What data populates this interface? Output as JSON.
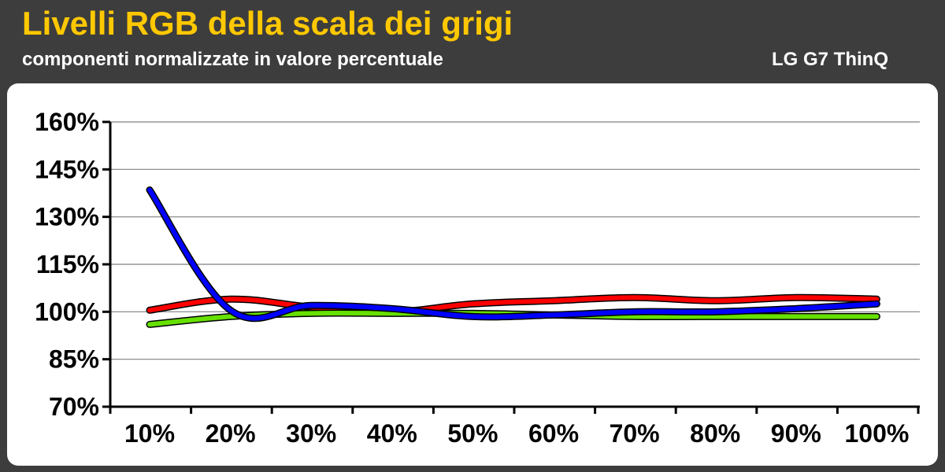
{
  "header": {
    "title": "Livelli RGB della scala dei grigi",
    "subtitle": "componenti normalizzate in valore percentuale",
    "device": "LG G7 ThinQ"
  },
  "colors": {
    "background": "#3d3d3d",
    "title": "#ffc800",
    "text": "#ffffff",
    "panel": "#ffffff",
    "grid": "#808080"
  },
  "chart_data": {
    "type": "line",
    "title": "Livelli RGB della scala dei grigi",
    "subtitle": "componenti normalizzate in valore percentuale",
    "xlabel": "",
    "ylabel": "",
    "categories": [
      "10%",
      "20%",
      "30%",
      "40%",
      "50%",
      "60%",
      "70%",
      "80%",
      "90%",
      "100%"
    ],
    "ylim": [
      70,
      160
    ],
    "yticks": [
      70,
      85,
      100,
      115,
      130,
      145,
      160
    ],
    "ytick_labels": [
      "70%",
      "85%",
      "100%",
      "115%",
      "130%",
      "145%",
      "160%"
    ],
    "grid": true,
    "series": [
      {
        "color": "#ff0000",
        "values": [
          100.5,
          104,
          101.5,
          100,
          102.5,
          103.5,
          104.5,
          103.5,
          104.5,
          104
        ]
      },
      {
        "color": "#66e000",
        "values": [
          96,
          98.5,
          99.5,
          99.5,
          99.5,
          99,
          98.5,
          98.5,
          98.5,
          98.5
        ]
      },
      {
        "color": "#0000ff",
        "values": [
          138.5,
          100.5,
          102,
          101,
          98.5,
          99,
          100,
          100,
          101,
          102.5
        ]
      }
    ]
  }
}
